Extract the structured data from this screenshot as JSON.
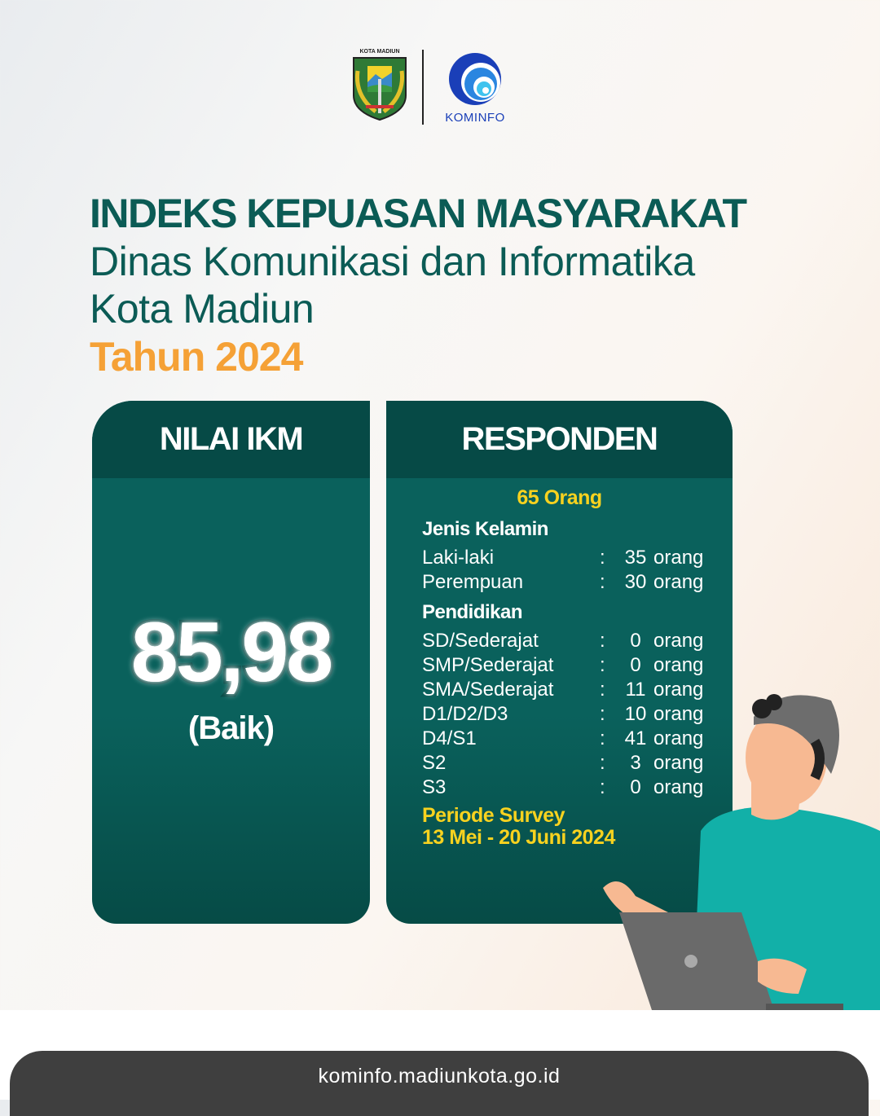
{
  "logos": {
    "left_logo_text": "KOTA MADIUN",
    "right_logo_text": "KOMINFO"
  },
  "title": {
    "line1": "INDEKS KEPUASAN MASYARAKAT",
    "line2": "Dinas Komunikasi dan Informatika",
    "line3": "Kota Madiun",
    "line4": "Tahun 2024"
  },
  "ikm": {
    "header": "NILAI IKM",
    "score": "85,98",
    "category": "(Baik)"
  },
  "responden": {
    "header": "RESPONDEN",
    "total": "65 Orang",
    "gender_title": "Jenis Kelamin",
    "gender": [
      {
        "label": "Laki-laki",
        "value": "35",
        "unit": "orang"
      },
      {
        "label": "Perempuan",
        "value": "30",
        "unit": "orang"
      }
    ],
    "education_title": "Pendidikan",
    "education": [
      {
        "label": "SD/Sederajat",
        "value": "0",
        "unit": "orang"
      },
      {
        "label": "SMP/Sederajat",
        "value": "0",
        "unit": "orang"
      },
      {
        "label": "SMA/Sederajat",
        "value": "11",
        "unit": "orang"
      },
      {
        "label": "D1/D2/D3",
        "value": "10",
        "unit": "orang"
      },
      {
        "label": "D4/S1",
        "value": "41",
        "unit": "orang"
      },
      {
        "label": "S2",
        "value": "3",
        "unit": "orang"
      },
      {
        "label": "S3",
        "value": "0",
        "unit": "orang"
      }
    ],
    "period_title": "Periode Survey",
    "period": "13 Mei - 20 Juni 2024"
  },
  "footer": {
    "url": "kominfo.madiunkota.go.id"
  },
  "colors": {
    "dark_green": "#064a46",
    "green": "#0a615c",
    "orange": "#f5a136",
    "yellow": "#f8d21f"
  }
}
